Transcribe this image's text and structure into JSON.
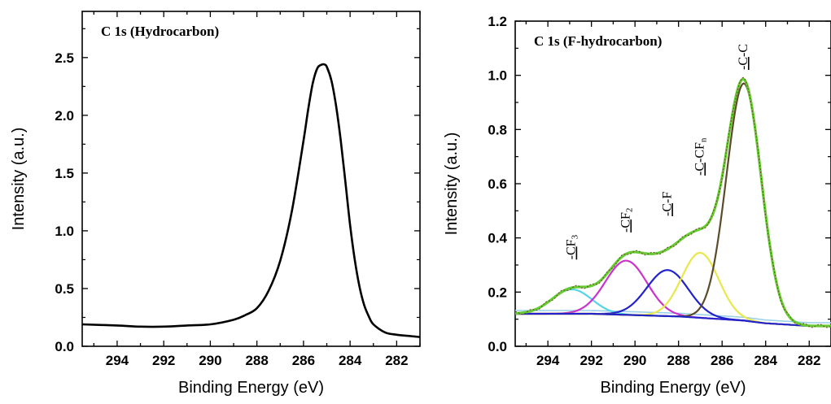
{
  "chart_data": [
    {
      "type": "line",
      "title": "C 1s (Hydrocarbon)",
      "xlabel": "Binding Energy (eV)",
      "ylabel": "Intensity (a.u.)",
      "xlim": [
        295.5,
        281
      ],
      "ylim": [
        0,
        2.9
      ],
      "x_reversed": true,
      "xticks": [
        294,
        292,
        290,
        288,
        286,
        284,
        282
      ],
      "yticks": [
        0.0,
        0.5,
        1.0,
        1.5,
        2.0,
        2.5
      ],
      "ytick_labels": [
        "0.0",
        "0.5",
        "1.0",
        "1.5",
        "2.0",
        "2.5"
      ],
      "series": [
        {
          "color": "#000000",
          "x": [
            295.5,
            294,
            293,
            292,
            291,
            290,
            289,
            288.5,
            288,
            287.5,
            287,
            286.5,
            286,
            285.8,
            285.6,
            285.4,
            285.2,
            285.1,
            285.0,
            284.8,
            284.6,
            284.4,
            284.2,
            284,
            283.8,
            283.6,
            283.4,
            283.2,
            283,
            282.5,
            282,
            281.5,
            281
          ],
          "y": [
            0.19,
            0.18,
            0.17,
            0.17,
            0.18,
            0.19,
            0.23,
            0.27,
            0.33,
            0.48,
            0.74,
            1.17,
            1.78,
            2.05,
            2.28,
            2.41,
            2.44,
            2.44,
            2.42,
            2.3,
            2.08,
            1.78,
            1.42,
            1.05,
            0.75,
            0.52,
            0.36,
            0.26,
            0.19,
            0.12,
            0.1,
            0.09,
            0.08
          ]
        }
      ]
    },
    {
      "type": "line",
      "title": "C 1s (F-hydrocarbon)",
      "xlabel": "Binding Energy (eV)",
      "ylabel": "Intensity (a.u.)",
      "xlim": [
        295.5,
        281
      ],
      "ylim": [
        0,
        1.2
      ],
      "x_reversed": true,
      "xticks": [
        294,
        292,
        290,
        288,
        286,
        284,
        282
      ],
      "yticks": [
        0.0,
        0.2,
        0.4,
        0.6,
        0.8,
        1.0,
        1.2
      ],
      "ytick_labels": [
        "0.0",
        "0.2",
        "0.4",
        "0.6",
        "0.8",
        "1.0",
        "1.2"
      ],
      "peaks": [
        {
          "label_main": "-C",
          "label_rest": "F",
          "label_sub": "3",
          "x": 292.9,
          "label_y": 0.32,
          "color": "#56d4e8",
          "center": 292.9,
          "height": 0.09,
          "width": 0.9
        },
        {
          "label_main": "-C",
          "label_rest": "F",
          "label_sub": "2",
          "x": 290.4,
          "label_y": 0.42,
          "color": "#cc33cc",
          "center": 290.4,
          "height": 0.2,
          "width": 0.95
        },
        {
          "label_main": "-C",
          "label_rest": "-F",
          "label_sub": "",
          "x": 288.5,
          "label_y": 0.48,
          "color": "#2222cc",
          "center": 288.5,
          "height": 0.17,
          "width": 0.95
        },
        {
          "label_main": "-C",
          "label_rest": "-CF",
          "label_sub": "n",
          "x": 287.0,
          "label_y": 0.63,
          "color": "#e8e84a",
          "center": 287.0,
          "height": 0.24,
          "width": 0.85
        },
        {
          "label_main": "-C",
          "label_rest": "-C",
          "label_sub": "",
          "x": 285.0,
          "label_y": 1.02,
          "color": "#5c4a2a",
          "center": 285.0,
          "height": 0.875,
          "width": 0.8
        }
      ],
      "envelope_color": "#66cc33",
      "background_color": "#9ad0e8",
      "baseline_color": "#2222cc",
      "baseline": {
        "x": [
          295.5,
          292,
          290,
          288,
          287,
          286,
          285,
          284,
          283,
          282,
          281
        ],
        "y": [
          0.12,
          0.12,
          0.115,
          0.11,
          0.105,
          0.1,
          0.095,
          0.085,
          0.08,
          0.075,
          0.075
        ]
      }
    }
  ]
}
